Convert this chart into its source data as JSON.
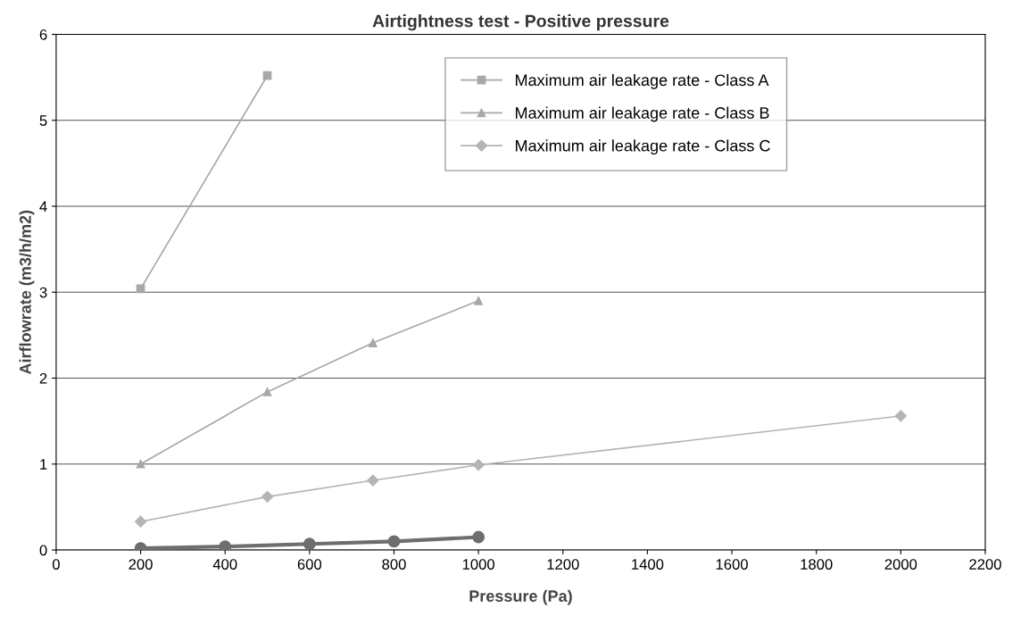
{
  "chart_data": {
    "type": "line",
    "title": "Airtightness test - Positive pressure",
    "xlabel": "Pressure (Pa)",
    "ylabel": "Airflowrate (m3/h/m2)",
    "xlim": [
      0,
      2200
    ],
    "xticks": [
      0,
      200,
      400,
      600,
      800,
      1000,
      1200,
      1400,
      1600,
      1800,
      2000,
      2200
    ],
    "ylim": [
      0,
      6
    ],
    "yticks": [
      0,
      1,
      2,
      3,
      4,
      5,
      6
    ],
    "grid": "y",
    "legend": "top right",
    "series": [
      {
        "name": "Maximum air leakage rate - Class A",
        "color": "#a8a8a8",
        "marker": "square",
        "x": [
          200,
          500
        ],
        "values": [
          3.04,
          5.52
        ]
      },
      {
        "name": "Maximum air leakage rate - Class B",
        "color": "#a8a8a8",
        "marker": "triangle",
        "x": [
          200,
          500,
          750,
          1000
        ],
        "values": [
          1.0,
          1.84,
          2.41,
          2.9
        ]
      },
      {
        "name": "Maximum air leakage rate - Class C",
        "color": "#b4b4b4",
        "marker": "diamond",
        "x": [
          200,
          500,
          750,
          1000,
          2000
        ],
        "values": [
          0.33,
          0.62,
          0.81,
          0.99,
          1.56
        ]
      },
      {
        "color": "#6e6e6e",
        "marker": "circle",
        "x": [
          200,
          400,
          600,
          800,
          1000
        ],
        "values": [
          0.02,
          0.04,
          0.07,
          0.1,
          0.15
        ]
      }
    ]
  }
}
